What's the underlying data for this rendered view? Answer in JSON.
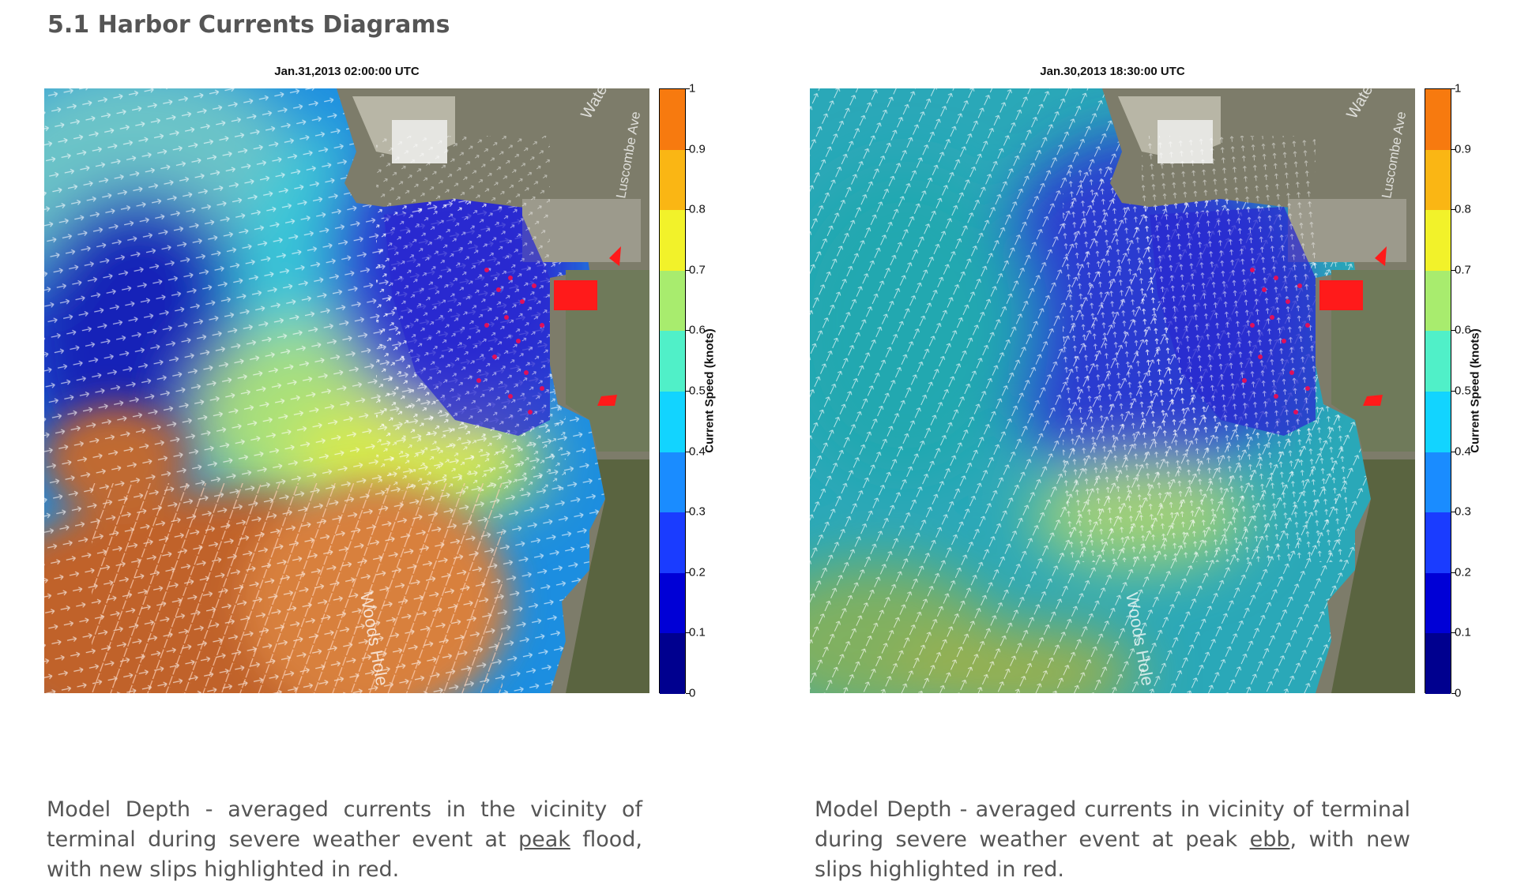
{
  "section_title": "5.1 Harbor Currents Diagrams",
  "panels": [
    {
      "id": "flood",
      "title": "Jan.31,2013 02:00:00 UTC",
      "caption_before": "Model Depth - averaged currents in the vicinity of terminal during severe weather event at ",
      "caption_emph": "peak",
      "caption_after": " flood, with new slips highlighted in red."
    },
    {
      "id": "ebb",
      "title": "Jan.30,2013 18:30:00 UTC",
      "caption_before": "Model Depth - averaged currents in vicinity of terminal during severe weather event at peak ",
      "caption_emph": "ebb",
      "caption_after": ", with new slips highlighted in red."
    }
  ],
  "colorbar": {
    "label": "Current Speed (knots)",
    "ticks": [
      "0",
      "0.1",
      "0.2",
      "0.3",
      "0.4",
      "0.5",
      "0.6",
      "0.7",
      "0.8",
      "0.9",
      "1"
    ],
    "colors": [
      "#00008f",
      "#0000d6",
      "#1a3cff",
      "#1a8cff",
      "#12d4ff",
      "#50f0c8",
      "#a8ec6e",
      "#f2f22a",
      "#fab614",
      "#f77a0f"
    ]
  },
  "map_labels": {
    "street_water": "Water St",
    "street_luscombe": "Luscombe Ave",
    "street_woods_hole": "Woods Hole"
  },
  "colors": {
    "slip_red": "#ff1a1a",
    "arrow_white": "#ffffff"
  }
}
